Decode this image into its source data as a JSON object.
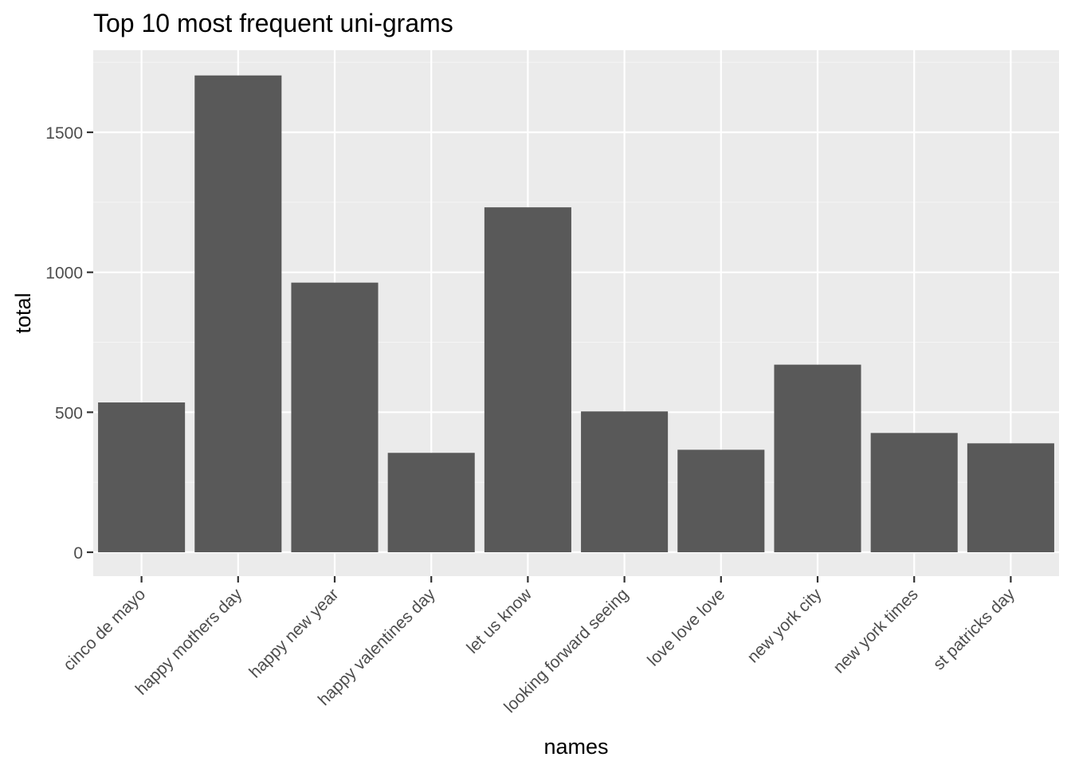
{
  "chart_data": {
    "type": "bar",
    "title": "Top 10 most frequent uni-grams",
    "xlabel": "names",
    "ylabel": "total",
    "categories": [
      "cinco de mayo",
      "happy mothers day",
      "happy new year",
      "happy valentines day",
      "let us know",
      "looking forward seeing",
      "love love love",
      "new york city",
      "new york times",
      "st patricks day"
    ],
    "values": [
      535,
      1703,
      963,
      355,
      1232,
      503,
      366,
      670,
      426,
      389
    ],
    "ylim": [
      0,
      1790
    ],
    "yticks": [
      0,
      500,
      1000,
      1500
    ],
    "ytick_labels": [
      "0",
      "500",
      "1000",
      "1500"
    ],
    "grid": true,
    "colors": {
      "panel_background": "#ebebeb",
      "grid_major": "#ffffff",
      "grid_minor": "#f5f5f5",
      "bar_fill": "#595959",
      "tick_mark": "#333333",
      "tick_text": "#4d4d4d"
    }
  }
}
